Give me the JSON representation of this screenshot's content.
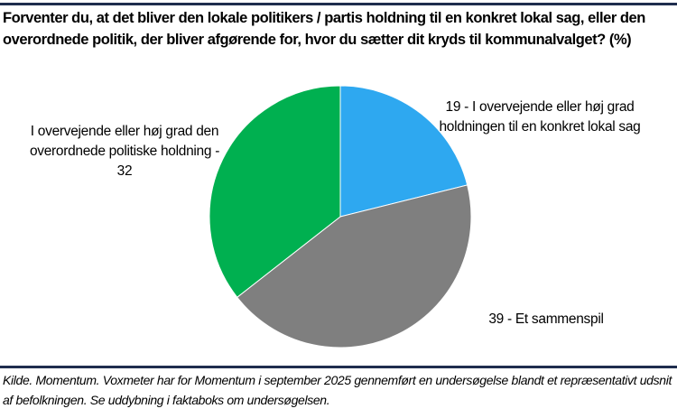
{
  "chart_data": {
    "type": "pie",
    "title": "Forventer du, at det bliver den lokale politikers / partis holdning til en konkret lokal sag, eller den overordnede politik, der bliver afgørende for, hvor du sætter dit kryds til kommunalvalget? (%)",
    "slices": [
      {
        "label": "19 - I overvejende eller høj grad holdningen til en konkret lokal sag",
        "value": 19,
        "color": "#2EA8F0"
      },
      {
        "label": "39 - Et sammenspil",
        "value": 39,
        "color": "#7F7F7F"
      },
      {
        "label": "I overvejende eller høj grad den overordnede politiske holdning - 32",
        "value": 32,
        "color": "#00B050"
      }
    ],
    "source": "Kilde. Momentum. Voxmeter har for Momentum i september 2025 gennemført en undersøgelse blandt et repræsentativt udsnit af befolkningen. Se uddybning i faktaboks om undersøgelsen."
  }
}
